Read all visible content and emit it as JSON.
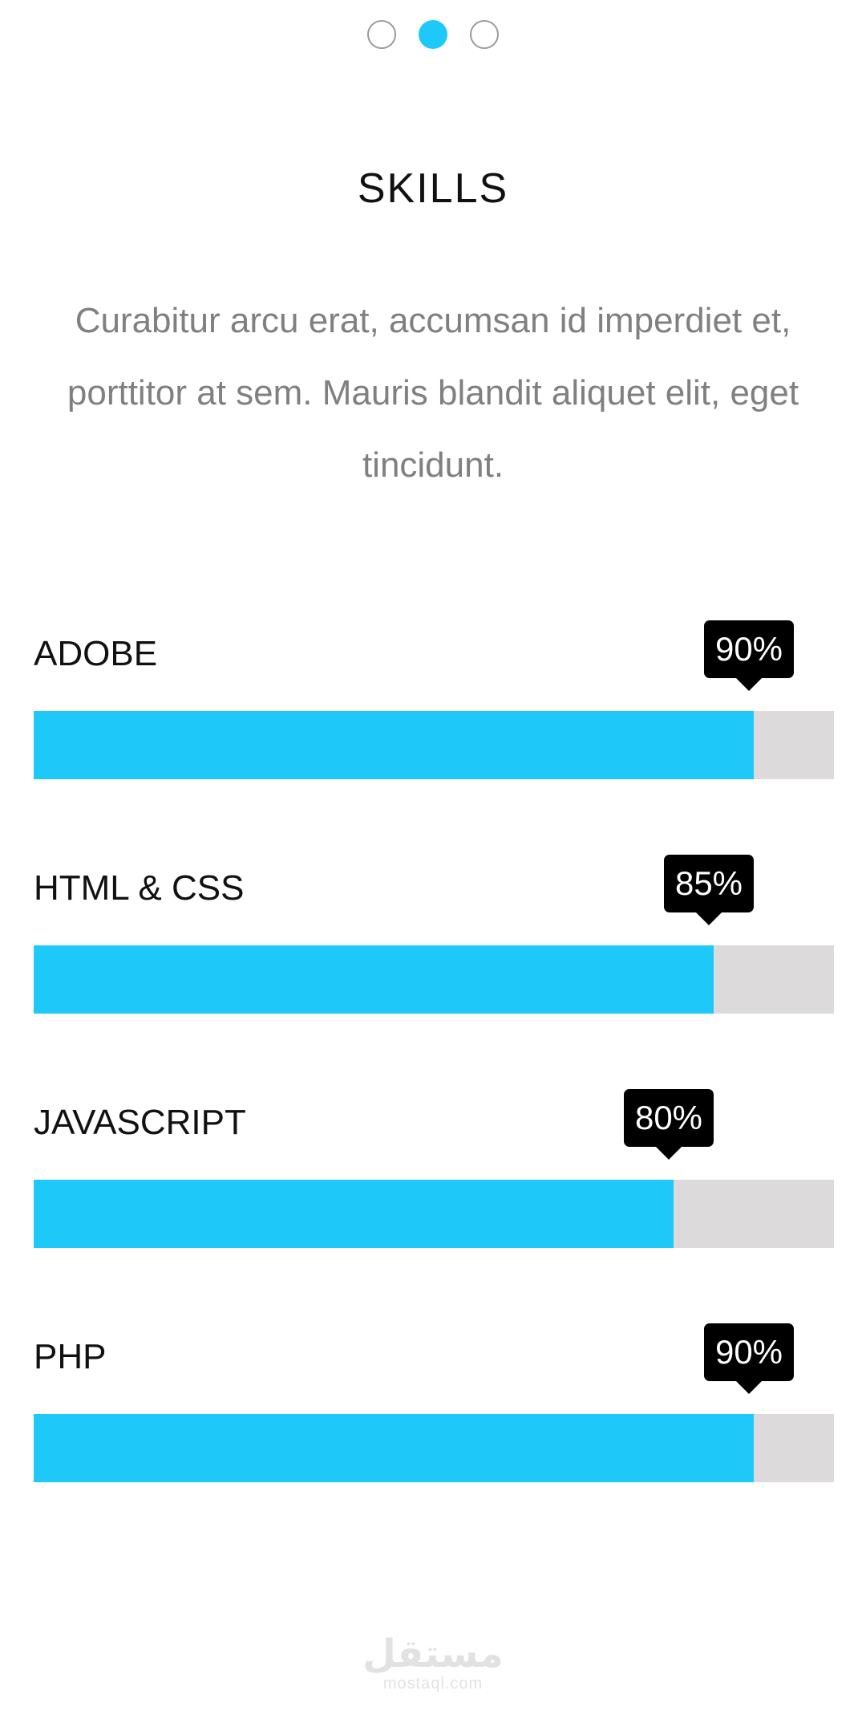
{
  "pager": {
    "pages": 3,
    "active_index": 1
  },
  "section": {
    "title": "SKILLS",
    "description": "Curabitur arcu erat, accumsan id imperdiet et, porttitor at sem. Mauris blandit aliquet elit, eget tincidunt."
  },
  "skills": [
    {
      "label": "ADOBE",
      "percent": 90,
      "percent_label": "90%"
    },
    {
      "label": "HTML & CSS",
      "percent": 85,
      "percent_label": "85%"
    },
    {
      "label": "JAVASCRIPT",
      "percent": 80,
      "percent_label": "80%"
    },
    {
      "label": "PHP",
      "percent": 90,
      "percent_label": "90%"
    }
  ],
  "watermark": {
    "logo_text": "مستقل",
    "domain": "mostaql.com"
  },
  "colors": {
    "accent": "#1ec8f9",
    "track": "#dcdadb",
    "tooltip_bg": "#000000"
  }
}
